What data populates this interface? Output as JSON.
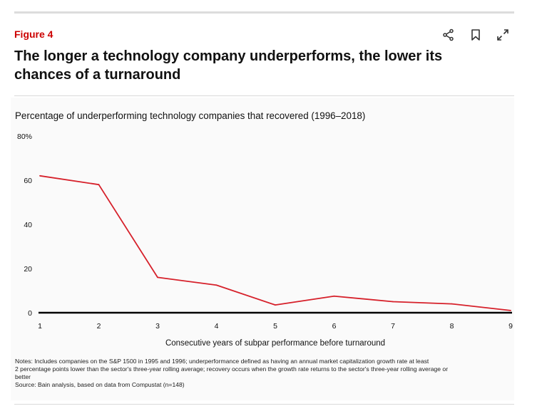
{
  "figure_label": "Figure 4",
  "headline": "The longer a technology company underperforms, the lower its chances of a turnaround",
  "toolbar": {
    "icons": [
      "share-icon",
      "bookmark-icon",
      "expand-icon"
    ]
  },
  "colors": {
    "accent": "#cc0000",
    "series": "#d6202a"
  },
  "chart_data": {
    "type": "line",
    "title": "Percentage of underperforming technology companies that recovered (1996–2018)",
    "xlabel": "Consecutive years of subpar performance before turnaround",
    "ylabel": "",
    "x": [
      1,
      2,
      3,
      4,
      5,
      6,
      7,
      8,
      9
    ],
    "series": [
      {
        "values": [
          62,
          58,
          16,
          12.5,
          3.5,
          7.5,
          5,
          4,
          1
        ]
      }
    ],
    "ylim": [
      0,
      80
    ],
    "yticks": [
      "0",
      "20",
      "40",
      "60",
      "80%"
    ],
    "xticks": [
      "1",
      "2",
      "3",
      "4",
      "5",
      "6",
      "7",
      "8",
      "9"
    ],
    "grid": false
  },
  "notes": {
    "line1": "Notes: Includes companies on the S&P 1500 in 1995 and 1996; underperformance defined as having an annual market capitalization growth rate at least",
    "line2": "2 percentage points lower than the sector's three-year rolling average; recovery occurs when the growth rate returns to the sector's three-year rolling average or",
    "line3": "better",
    "source": "Source: Bain analysis, based on data from Compustat (n=148)"
  }
}
